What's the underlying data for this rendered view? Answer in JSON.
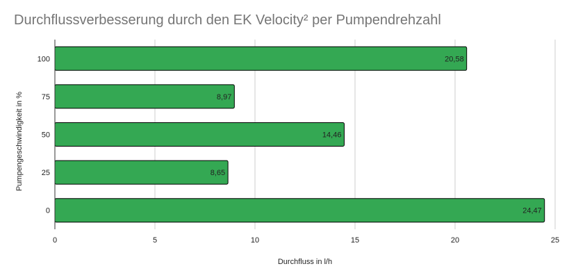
{
  "chart_data": {
    "type": "bar",
    "orientation": "horizontal",
    "title": "Durchflussverbesserung durch den EK Velocity² per Pumpendrehzahl",
    "xlabel": "Durchfluss in l/h",
    "ylabel": "Pumpengeschwindigkeit in %",
    "categories": [
      "100",
      "75",
      "50",
      "25",
      "0"
    ],
    "values": [
      20.58,
      8.97,
      14.46,
      8.65,
      24.47
    ],
    "data_labels": [
      "20,58",
      "8,97",
      "14,46",
      "8,65",
      "24,47"
    ],
    "xlim": [
      0,
      25
    ],
    "xticks": [
      0,
      5,
      10,
      15,
      20,
      25
    ],
    "xtick_labels": [
      "0",
      "5",
      "10",
      "15",
      "20",
      "25"
    ],
    "grid": true,
    "legend": "none",
    "bar_color": "#34a853",
    "bar_border_color": "#000000",
    "gridline_color": "#cccccc",
    "title_color": "#757575"
  }
}
